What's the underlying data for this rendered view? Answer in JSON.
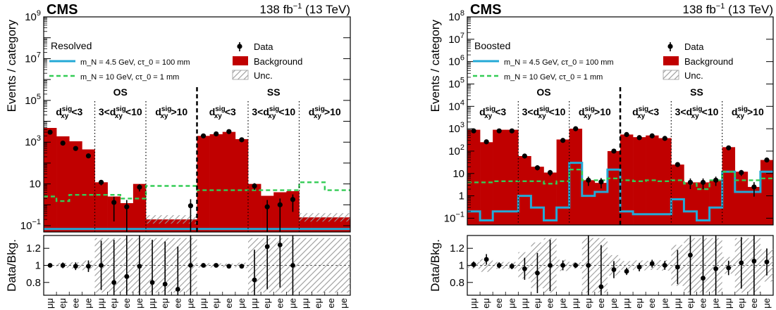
{
  "figure": {
    "panels": [
      {
        "experiment": "CMS",
        "lumi": "138 fb",
        "lumi_sup": "−1",
        "energy": " (13 TeV)",
        "category_label": "Resolved"
      },
      {
        "experiment": "CMS",
        "lumi": "138 fb",
        "lumi_sup": "−1",
        "energy": " (13 TeV)",
        "category_label": "Boosted"
      }
    ],
    "legend": {
      "signal1": "m_N = 4.5 GeV, cτ_0 = 100 mm",
      "signal2": "m_N = 10 GeV, cτ_0 = 1 mm",
      "data": "Data",
      "background": "Background",
      "unc": "Unc."
    },
    "groups": [
      "OS",
      "SS"
    ],
    "dxy_bins": [
      "<3",
      "3<",
      "<10",
      ">10"
    ],
    "colors": {
      "background": "#c00000",
      "data": "#000000",
      "signal1": "#24a9d6",
      "signal2": "#33cc55",
      "unc_hatch": "#9a9a9a"
    }
  },
  "chart_data": [
    {
      "type": "bar",
      "title": "Resolved",
      "ylabel": "Events / category",
      "ratio_ylabel": "Data/Bkg.",
      "ylog": true,
      "ylim": [
        0.05,
        1000000000
      ],
      "ratio_ylim": [
        0.65,
        1.35
      ],
      "xticklabels": [
        "μμ",
        "eμ",
        "ee",
        "μe",
        "μμ",
        "eμ",
        "ee",
        "μe",
        "μμ",
        "eμ",
        "ee",
        "μe",
        "μμ",
        "eμ",
        "ee",
        "μe",
        "μμ",
        "eμ",
        "ee",
        "μe",
        "μμ",
        "eμ",
        "ee",
        "μe"
      ],
      "background": [
        4800,
        1900,
        1100,
        450,
        12,
        2.5,
        1.2,
        10,
        0.2,
        0.2,
        0.2,
        0.2,
        2000,
        2400,
        3100,
        1400,
        10,
        2.7,
        4.0,
        4.5,
        0.25,
        0.25,
        0.25,
        0.25
      ],
      "data": [
        3000,
        900,
        500,
        220,
        12,
        1.3,
        0.8,
        7,
        0.07,
        0.07,
        0.07,
        0.9,
        2000,
        2500,
        3200,
        1300,
        8,
        0.8,
        1.0,
        1.8,
        0.07,
        0.07,
        0.07,
        0.07
      ],
      "signal1": [
        0.07,
        0.07,
        0.07,
        0.07,
        0.07,
        0.07,
        0.07,
        0.07,
        0.07,
        0.07,
        0.07,
        0.07,
        0.07,
        0.07,
        0.07,
        0.07,
        0.07,
        0.07,
        0.07,
        0.07,
        0.07,
        0.07,
        0.07,
        0.07
      ],
      "signal2": [
        2.5,
        1.5,
        3.0,
        3.0,
        3.0,
        3.0,
        2.0,
        2.0,
        8.0,
        8.0,
        8.0,
        8.0,
        5.0,
        5.0,
        5.0,
        5.0,
        5.0,
        5.0,
        5.0,
        5.0,
        12.0,
        12.0,
        5.0,
        5.0
      ],
      "ratio": [
        1.0,
        1.0,
        0.99,
        0.99,
        1.0,
        0.8,
        0.87,
        0.99,
        0.8,
        0.78,
        0.72,
        1.0,
        1.0,
        1.0,
        0.99,
        0.99,
        0.83,
        1.22,
        1.24,
        1.0,
        1.0,
        1.0,
        1.0,
        1.0
      ]
    },
    {
      "type": "bar",
      "title": "Boosted",
      "ylabel": "Events / category",
      "ratio_ylabel": "Data/Bkg.",
      "ylog": true,
      "ylim": [
        0.05,
        100000000
      ],
      "ratio_ylim": [
        0.65,
        1.35
      ],
      "xticklabels": [
        "μμ",
        "eμ",
        "ee",
        "μe",
        "μμ",
        "eμ",
        "ee",
        "μe",
        "μμ",
        "eμ",
        "ee",
        "μe",
        "μμ",
        "eμ",
        "ee",
        "μe",
        "μμ",
        "eμ",
        "ee",
        "μe",
        "μμ",
        "eμ",
        "ee",
        "μe"
      ],
      "background": [
        900,
        250,
        900,
        900,
        60,
        20,
        11,
        330,
        1000,
        5,
        3.8,
        100,
        550,
        420,
        500,
        380,
        25,
        4,
        4,
        5,
        150,
        12,
        2.5,
        40
      ],
      "data": [
        800,
        260,
        800,
        800,
        60,
        18,
        11,
        300,
        1000,
        5,
        4.2,
        100,
        550,
        400,
        480,
        370,
        25,
        4,
        4,
        5,
        140,
        11,
        2.5,
        40
      ],
      "signal1": [
        0.2,
        0.08,
        0.2,
        0.2,
        1.0,
        0.3,
        0.08,
        0.3,
        30,
        1.0,
        1.5,
        15,
        0.2,
        0.15,
        0.15,
        0.15,
        0.7,
        0.2,
        0.08,
        0.3,
        12,
        1.5,
        1.5,
        12
      ],
      "signal2": [
        4,
        4,
        4.5,
        4.5,
        4.5,
        4.5,
        3.5,
        4.5,
        15,
        5,
        5,
        6,
        5,
        4.5,
        5,
        4.5,
        5,
        3.5,
        2,
        5,
        12,
        5,
        5,
        6
      ],
      "ratio": [
        1.01,
        1.07,
        1.0,
        0.99,
        0.96,
        0.91,
        1.0,
        1.0,
        1.0,
        1.0,
        0.75,
        0.95,
        0.93,
        0.98,
        1.02,
        1.0,
        0.98,
        1.12,
        0.85,
        0.96,
        0.97,
        1.03,
        1.05,
        1.04
      ]
    }
  ]
}
